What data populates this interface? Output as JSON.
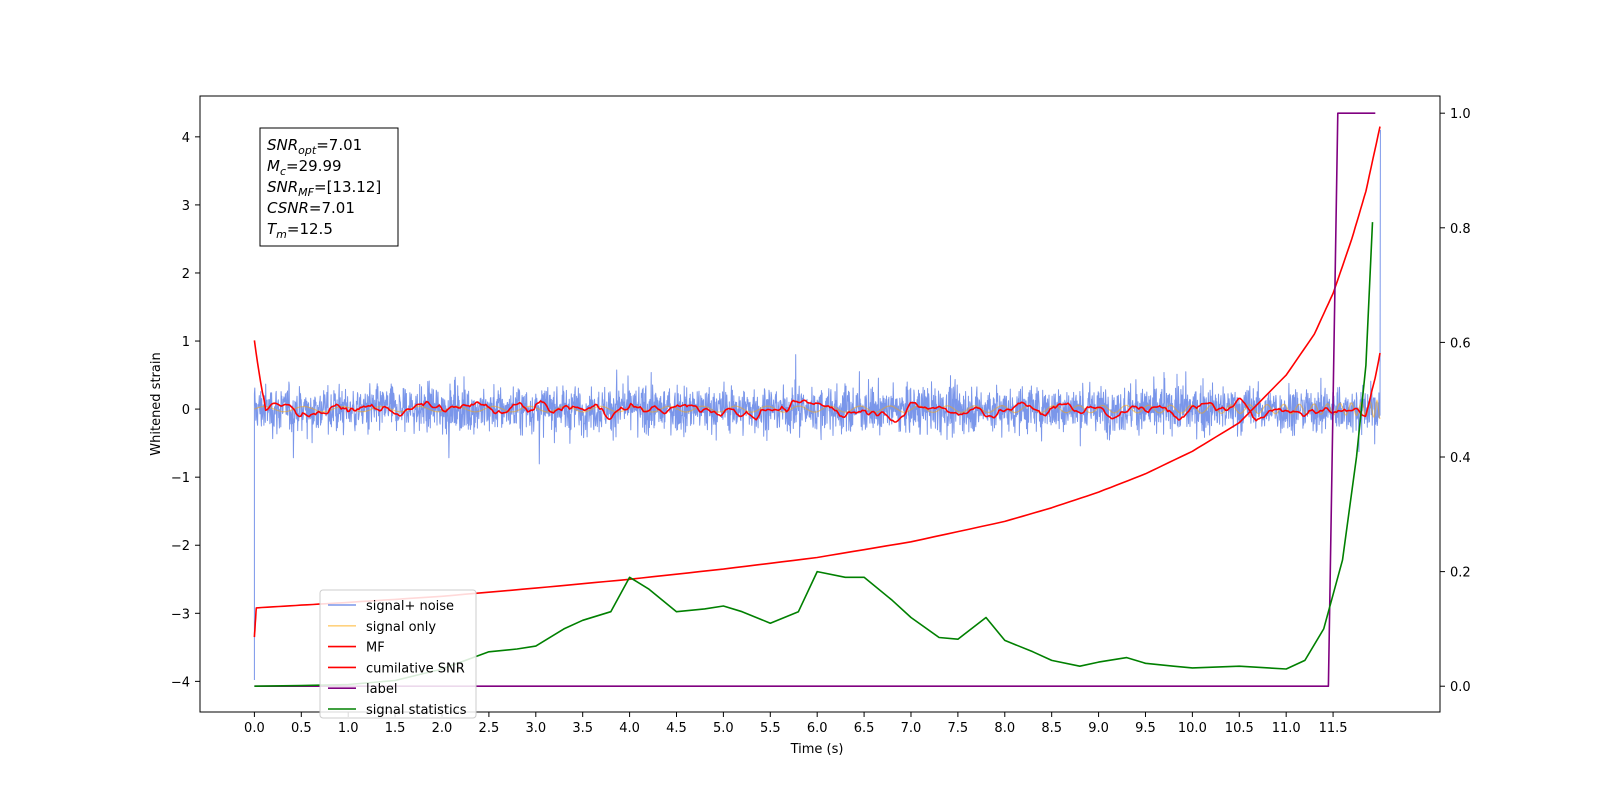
{
  "chart_data": {
    "type": "line",
    "xlabel": "Time (s)",
    "ylabel": "Whitened strain",
    "xlim": [
      -0.58,
      12.64
    ],
    "ylim": [
      -4.45,
      4.6
    ],
    "ylim_right": [
      -0.045,
      1.03
    ],
    "x_ticks": [
      "0.0",
      "0.5",
      "1.0",
      "1.5",
      "2.0",
      "2.5",
      "3.0",
      "3.5",
      "4.0",
      "4.5",
      "5.0",
      "5.5",
      "6.0",
      "6.5",
      "7.0",
      "7.5",
      "8.0",
      "8.5",
      "9.0",
      "9.5",
      "10.0",
      "10.5",
      "11.0",
      "11.5"
    ],
    "y_ticks_left": [
      "4",
      "3",
      "2",
      "1",
      "0",
      "−1",
      "−2",
      "−3",
      "−4"
    ],
    "y_ticks_right": [
      "1.0",
      "0.8",
      "0.6",
      "0.4",
      "0.2",
      "0.0"
    ],
    "grid": false,
    "legend_position": "lower-left",
    "annotation": [
      {
        "main": "SNR",
        "sub": "opt",
        "rest": "=7.01"
      },
      {
        "main": "M",
        "sub": "c",
        "rest": "=29.99"
      },
      {
        "main": "SNR",
        "sub": "MF",
        "rest": "=[13.12]"
      },
      {
        "main": "CSNR",
        "sub": "",
        "rest": "=7.01"
      },
      {
        "main": "T",
        "sub": "m",
        "rest": "=12.5"
      }
    ],
    "series": [
      {
        "name": "signal+ noise",
        "axis": "left",
        "color": "#4169e1",
        "style": "noise",
        "amplitude": 0.75,
        "x_range": [
          0.0,
          12.0
        ]
      },
      {
        "name": "signal only",
        "axis": "left",
        "color": "#ffa500",
        "style": "chirp",
        "x_range": [
          0.0,
          12.0
        ]
      },
      {
        "name": "MF",
        "axis": "left",
        "color": "#ff0000",
        "style": "mf",
        "x_range": [
          0.0,
          12.0
        ]
      },
      {
        "name": "cumilative SNR",
        "axis": "left",
        "color": "#ff0000",
        "x": [
          0.0,
          0.02,
          0.5,
          1.0,
          2.0,
          3.0,
          4.0,
          5.0,
          6.0,
          7.0,
          8.0,
          8.5,
          9.0,
          9.5,
          10.0,
          10.5,
          11.0,
          11.3,
          11.5,
          11.7,
          11.85,
          12.0
        ],
        "values": [
          -3.35,
          -2.92,
          -2.88,
          -2.84,
          -2.75,
          -2.63,
          -2.5,
          -2.35,
          -2.18,
          -1.95,
          -1.65,
          -1.45,
          -1.22,
          -0.95,
          -0.62,
          -0.2,
          0.5,
          1.1,
          1.7,
          2.5,
          3.2,
          4.15
        ]
      },
      {
        "name": "label",
        "axis": "right",
        "color": "#800080",
        "x": [
          0.0,
          11.45,
          11.55,
          11.95
        ],
        "values": [
          0.0,
          0.0,
          1.0,
          1.0
        ]
      },
      {
        "name": "signal statistics",
        "axis": "right",
        "color": "#008000",
        "x": [
          0.0,
          0.5,
          1.0,
          1.5,
          2.0,
          2.5,
          2.8,
          3.0,
          3.3,
          3.5,
          3.8,
          4.0,
          4.2,
          4.5,
          4.8,
          5.0,
          5.2,
          5.5,
          5.8,
          6.0,
          6.3,
          6.5,
          6.8,
          7.0,
          7.3,
          7.5,
          7.8,
          8.0,
          8.3,
          8.5,
          8.8,
          9.0,
          9.3,
          9.5,
          9.8,
          10.0,
          10.5,
          11.0,
          11.2,
          11.4,
          11.6,
          11.75,
          11.85,
          11.92
        ],
        "values": [
          0.0,
          0.001,
          0.003,
          0.01,
          0.03,
          0.06,
          0.065,
          0.07,
          0.1,
          0.115,
          0.13,
          0.19,
          0.17,
          0.13,
          0.135,
          0.14,
          0.13,
          0.11,
          0.13,
          0.2,
          0.19,
          0.19,
          0.15,
          0.12,
          0.085,
          0.082,
          0.12,
          0.08,
          0.06,
          0.045,
          0.035,
          0.042,
          0.05,
          0.04,
          0.035,
          0.032,
          0.035,
          0.03,
          0.045,
          0.1,
          0.22,
          0.4,
          0.56,
          0.81
        ]
      }
    ]
  }
}
